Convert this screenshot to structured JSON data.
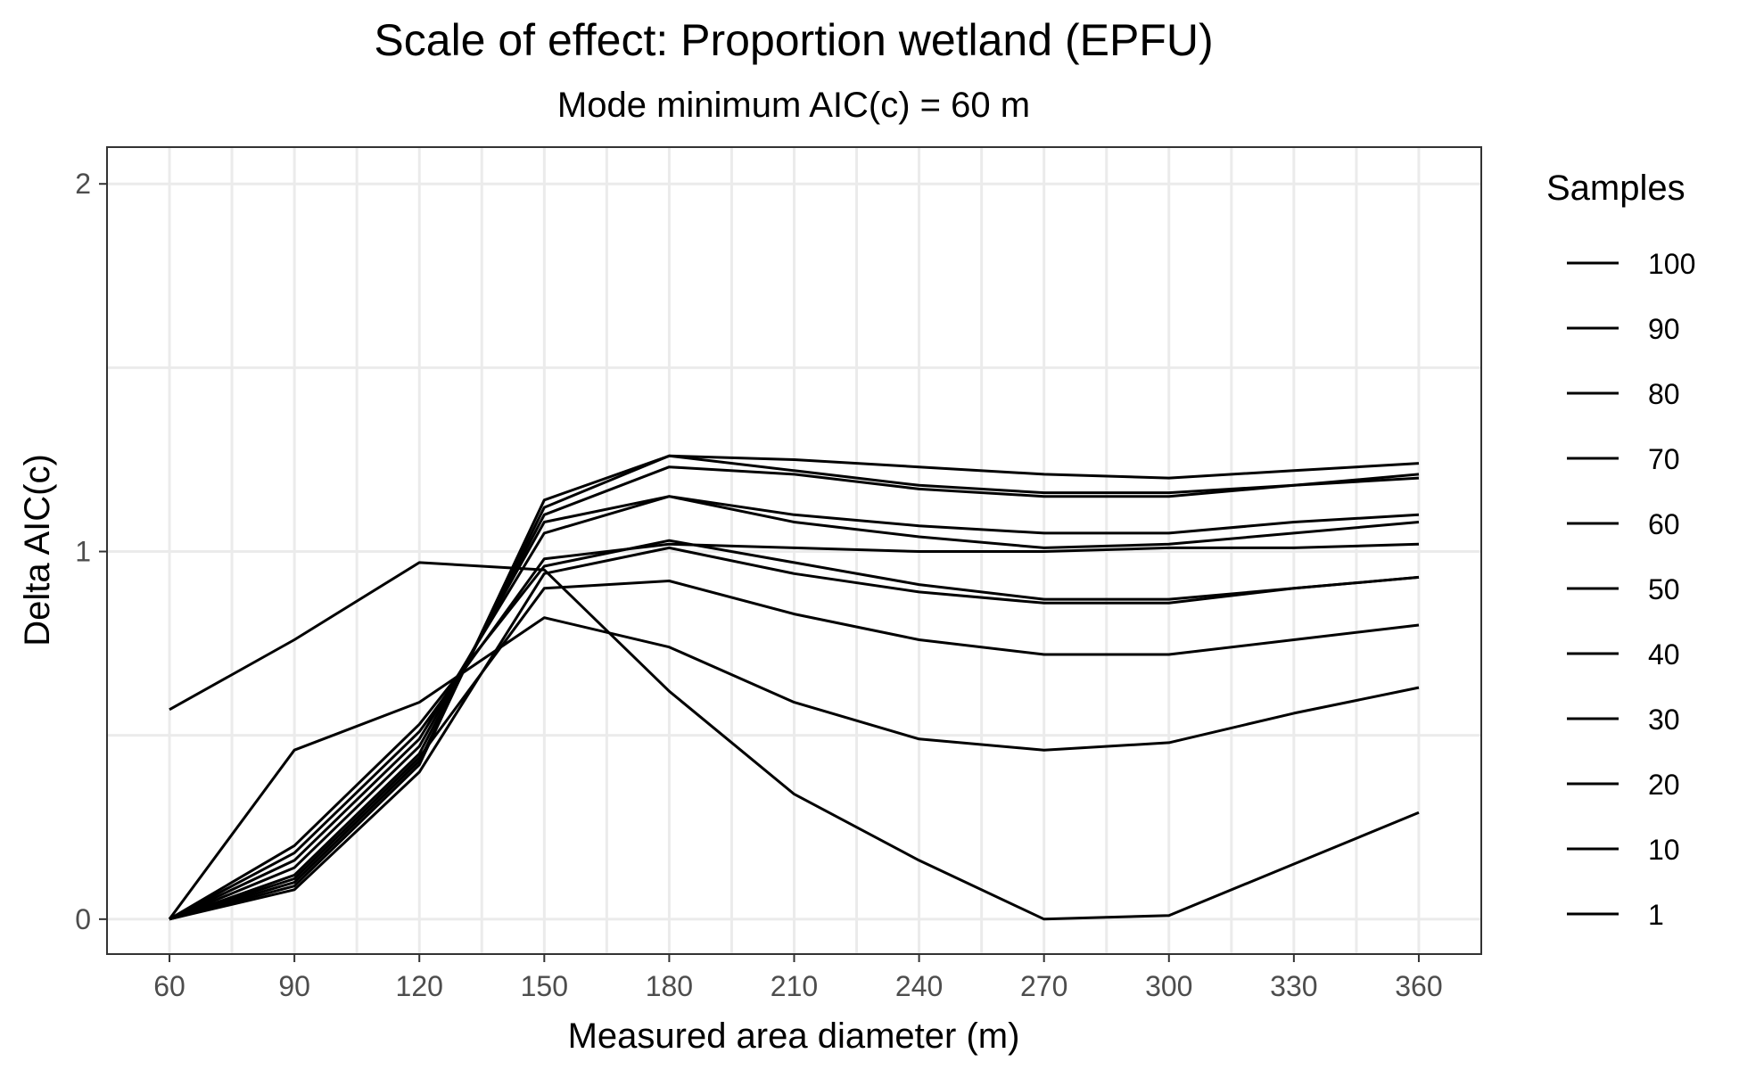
{
  "chart_data": {
    "type": "line",
    "title": "Scale of effect: Proportion wetland (EPFU)",
    "subtitle": "Mode minimum AIC(c) = 60 m",
    "xlabel": "Measured area diameter (m)",
    "ylabel": "Delta AIC(c)",
    "x": [
      60,
      90,
      120,
      150,
      180,
      210,
      240,
      270,
      300,
      330,
      360
    ],
    "xlim": [
      45,
      375
    ],
    "ylim": [
      -0.095,
      2.1
    ],
    "x_ticks": [
      60,
      90,
      120,
      150,
      180,
      210,
      240,
      270,
      300,
      330,
      360
    ],
    "y_ticks": [
      0,
      1,
      2
    ],
    "grid": true,
    "line_color": "#000000",
    "legend": {
      "title": "Samples",
      "position": "right",
      "entries": [
        "100",
        "90",
        "80",
        "70",
        "60",
        "50",
        "40",
        "30",
        "20",
        "10",
        "1"
      ]
    },
    "series": [
      {
        "values": [
          0,
          0.09,
          0.42,
          1.14,
          1.26,
          1.25,
          1.23,
          1.21,
          1.2,
          1.22,
          1.24
        ]
      },
      {
        "values": [
          0,
          0.1,
          0.43,
          1.12,
          1.26,
          1.22,
          1.18,
          1.16,
          1.16,
          1.18,
          1.21
        ]
      },
      {
        "values": [
          0,
          0.12,
          0.45,
          1.1,
          1.23,
          1.21,
          1.17,
          1.15,
          1.15,
          1.18,
          1.2
        ]
      },
      {
        "values": [
          0,
          0.14,
          0.47,
          1.08,
          1.15,
          1.1,
          1.07,
          1.05,
          1.05,
          1.08,
          1.1
        ]
      },
      {
        "values": [
          0,
          0.16,
          0.49,
          1.05,
          1.15,
          1.08,
          1.04,
          1.01,
          1.02,
          1.05,
          1.08
        ]
      },
      {
        "values": [
          0,
          0.18,
          0.51,
          0.98,
          1.02,
          1.01,
          1.0,
          1.0,
          1.01,
          1.01,
          1.02
        ]
      },
      {
        "values": [
          0,
          0.2,
          0.53,
          0.96,
          1.03,
          0.97,
          0.91,
          0.87,
          0.87,
          0.9,
          0.93
        ]
      },
      {
        "values": [
          0,
          0.08,
          0.4,
          0.94,
          1.01,
          0.94,
          0.89,
          0.86,
          0.86,
          0.9,
          0.93
        ]
      },
      {
        "values": [
          0,
          0.11,
          0.44,
          0.9,
          0.92,
          0.83,
          0.76,
          0.72,
          0.72,
          0.76,
          0.8
        ]
      },
      {
        "values": [
          0,
          0.46,
          0.59,
          0.82,
          0.74,
          0.59,
          0.49,
          0.46,
          0.48,
          0.56,
          0.63
        ]
      },
      {
        "values": [
          0.57,
          0.76,
          0.97,
          0.95,
          0.62,
          0.34,
          0.16,
          0,
          0.01,
          0.15,
          0.29
        ]
      }
    ]
  }
}
